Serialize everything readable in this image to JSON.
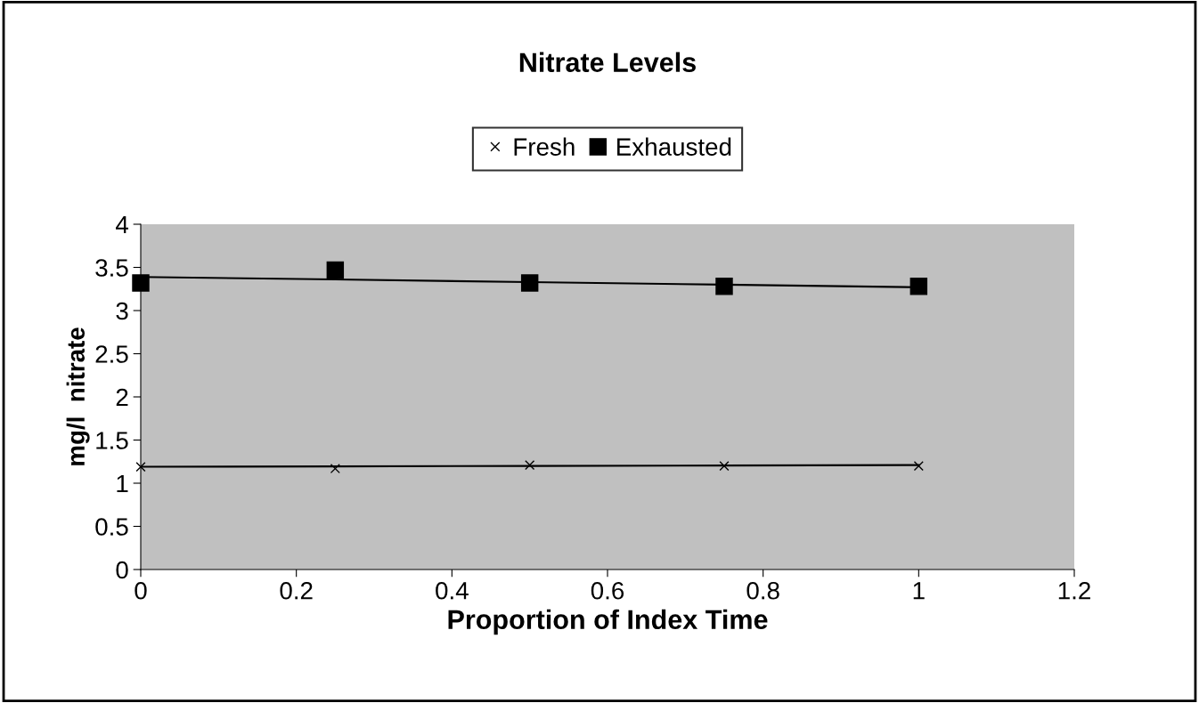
{
  "chart_data": {
    "type": "scatter",
    "title": "Nitrate Levels",
    "xlabel": "Proportion of Index Time",
    "ylabel": "mg/l  nitrate",
    "x": [
      0,
      0.25,
      0.5,
      0.75,
      1
    ],
    "series": [
      {
        "name": "Fresh",
        "color": "#000000",
        "marker": "cross",
        "values": [
          1.19,
          1.17,
          1.21,
          1.2,
          1.2
        ]
      },
      {
        "name": "Exhausted",
        "color": "#000000",
        "marker": "square",
        "values": [
          3.32,
          3.47,
          3.32,
          3.28,
          3.28
        ]
      },
      {
        "type": "line",
        "color": "#000000",
        "marker": "none",
        "values": [
          1.19,
          1.195,
          1.2,
          1.205,
          1.21
        ]
      },
      {
        "type": "line",
        "color": "#000000",
        "marker": "none",
        "values": [
          3.39,
          3.36,
          3.33,
          3.3,
          3.27
        ]
      }
    ],
    "xlim": [
      0,
      1.2
    ],
    "xticks": [
      0,
      0.2,
      0.4,
      0.6,
      0.8,
      1,
      1.2
    ],
    "ylim": [
      0,
      4
    ],
    "yticks": [
      0,
      0.5,
      1,
      1.5,
      2,
      2.5,
      3,
      3.5,
      4
    ],
    "grid": false,
    "legend": "top"
  }
}
